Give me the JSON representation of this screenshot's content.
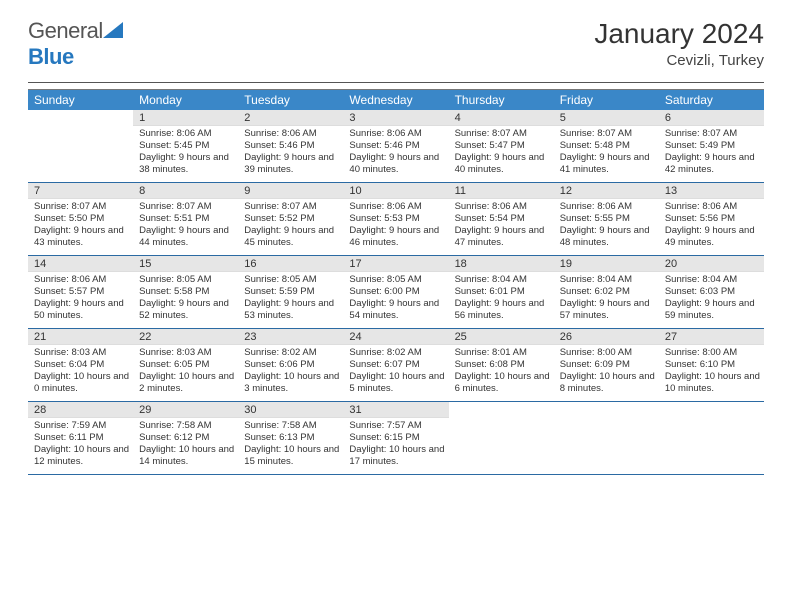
{
  "logo": {
    "text1": "General",
    "text2": "Blue"
  },
  "title": "January 2024",
  "location": "Cevizli, Turkey",
  "day_names": [
    "Sunday",
    "Monday",
    "Tuesday",
    "Wednesday",
    "Thursday",
    "Friday",
    "Saturday"
  ],
  "colors": {
    "header_bg": "#3a87c8",
    "header_text": "#ffffff",
    "week_border": "#2b6aa3",
    "daynum_bg": "#e6e6e6",
    "logo_blue": "#2678bf"
  },
  "start_offset": 1,
  "days": [
    {
      "n": "1",
      "sr": "8:06 AM",
      "ss": "5:45 PM",
      "dl": "9 hours and 38 minutes."
    },
    {
      "n": "2",
      "sr": "8:06 AM",
      "ss": "5:46 PM",
      "dl": "9 hours and 39 minutes."
    },
    {
      "n": "3",
      "sr": "8:06 AM",
      "ss": "5:46 PM",
      "dl": "9 hours and 40 minutes."
    },
    {
      "n": "4",
      "sr": "8:07 AM",
      "ss": "5:47 PM",
      "dl": "9 hours and 40 minutes."
    },
    {
      "n": "5",
      "sr": "8:07 AM",
      "ss": "5:48 PM",
      "dl": "9 hours and 41 minutes."
    },
    {
      "n": "6",
      "sr": "8:07 AM",
      "ss": "5:49 PM",
      "dl": "9 hours and 42 minutes."
    },
    {
      "n": "7",
      "sr": "8:07 AM",
      "ss": "5:50 PM",
      "dl": "9 hours and 43 minutes."
    },
    {
      "n": "8",
      "sr": "8:07 AM",
      "ss": "5:51 PM",
      "dl": "9 hours and 44 minutes."
    },
    {
      "n": "9",
      "sr": "8:07 AM",
      "ss": "5:52 PM",
      "dl": "9 hours and 45 minutes."
    },
    {
      "n": "10",
      "sr": "8:06 AM",
      "ss": "5:53 PM",
      "dl": "9 hours and 46 minutes."
    },
    {
      "n": "11",
      "sr": "8:06 AM",
      "ss": "5:54 PM",
      "dl": "9 hours and 47 minutes."
    },
    {
      "n": "12",
      "sr": "8:06 AM",
      "ss": "5:55 PM",
      "dl": "9 hours and 48 minutes."
    },
    {
      "n": "13",
      "sr": "8:06 AM",
      "ss": "5:56 PM",
      "dl": "9 hours and 49 minutes."
    },
    {
      "n": "14",
      "sr": "8:06 AM",
      "ss": "5:57 PM",
      "dl": "9 hours and 50 minutes."
    },
    {
      "n": "15",
      "sr": "8:05 AM",
      "ss": "5:58 PM",
      "dl": "9 hours and 52 minutes."
    },
    {
      "n": "16",
      "sr": "8:05 AM",
      "ss": "5:59 PM",
      "dl": "9 hours and 53 minutes."
    },
    {
      "n": "17",
      "sr": "8:05 AM",
      "ss": "6:00 PM",
      "dl": "9 hours and 54 minutes."
    },
    {
      "n": "18",
      "sr": "8:04 AM",
      "ss": "6:01 PM",
      "dl": "9 hours and 56 minutes."
    },
    {
      "n": "19",
      "sr": "8:04 AM",
      "ss": "6:02 PM",
      "dl": "9 hours and 57 minutes."
    },
    {
      "n": "20",
      "sr": "8:04 AM",
      "ss": "6:03 PM",
      "dl": "9 hours and 59 minutes."
    },
    {
      "n": "21",
      "sr": "8:03 AM",
      "ss": "6:04 PM",
      "dl": "10 hours and 0 minutes."
    },
    {
      "n": "22",
      "sr": "8:03 AM",
      "ss": "6:05 PM",
      "dl": "10 hours and 2 minutes."
    },
    {
      "n": "23",
      "sr": "8:02 AM",
      "ss": "6:06 PM",
      "dl": "10 hours and 3 minutes."
    },
    {
      "n": "24",
      "sr": "8:02 AM",
      "ss": "6:07 PM",
      "dl": "10 hours and 5 minutes."
    },
    {
      "n": "25",
      "sr": "8:01 AM",
      "ss": "6:08 PM",
      "dl": "10 hours and 6 minutes."
    },
    {
      "n": "26",
      "sr": "8:00 AM",
      "ss": "6:09 PM",
      "dl": "10 hours and 8 minutes."
    },
    {
      "n": "27",
      "sr": "8:00 AM",
      "ss": "6:10 PM",
      "dl": "10 hours and 10 minutes."
    },
    {
      "n": "28",
      "sr": "7:59 AM",
      "ss": "6:11 PM",
      "dl": "10 hours and 12 minutes."
    },
    {
      "n": "29",
      "sr": "7:58 AM",
      "ss": "6:12 PM",
      "dl": "10 hours and 14 minutes."
    },
    {
      "n": "30",
      "sr": "7:58 AM",
      "ss": "6:13 PM",
      "dl": "10 hours and 15 minutes."
    },
    {
      "n": "31",
      "sr": "7:57 AM",
      "ss": "6:15 PM",
      "dl": "10 hours and 17 minutes."
    }
  ],
  "labels": {
    "sunrise": "Sunrise:",
    "sunset": "Sunset:",
    "daylight": "Daylight:"
  }
}
